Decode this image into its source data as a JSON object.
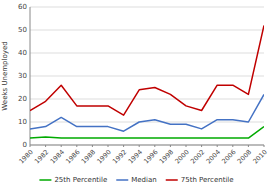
{
  "chart_data": {
    "type": "line",
    "y_label": "Weeks Unemployed",
    "x": [
      1980,
      1982,
      1984,
      1986,
      1988,
      1990,
      1992,
      1994,
      1996,
      1998,
      2000,
      2002,
      2004,
      2006,
      2008,
      2010
    ],
    "series": [
      {
        "name": "25th Percentile",
        "color": "#00aa00",
        "values": [
          3,
          3.5,
          3,
          3,
          3,
          3,
          3,
          3,
          3,
          3,
          3,
          3,
          3,
          3,
          3,
          8
        ]
      },
      {
        "name": "Median",
        "color": "#4472c4",
        "values": [
          7,
          8,
          12,
          8,
          8,
          8,
          6,
          10,
          11,
          9,
          9,
          7,
          11,
          11,
          10,
          22
        ]
      },
      {
        "name": "75th Percentile",
        "color": "#c00000",
        "values": [
          15,
          19,
          26,
          17,
          17,
          17,
          13,
          24,
          25,
          22,
          17,
          15,
          26,
          26,
          22,
          52
        ]
      }
    ],
    "xlim": [
      1980,
      2010
    ],
    "xticks": [
      1980,
      1982,
      1984,
      1986,
      1988,
      1990,
      1992,
      1994,
      1996,
      1998,
      2000,
      2002,
      2004,
      2006,
      2008,
      2010
    ],
    "ylim": [
      0,
      60
    ],
    "yticks": [
      0,
      10,
      20,
      30,
      40,
      50,
      60
    ],
    "grid": true,
    "legend": "bottom"
  }
}
